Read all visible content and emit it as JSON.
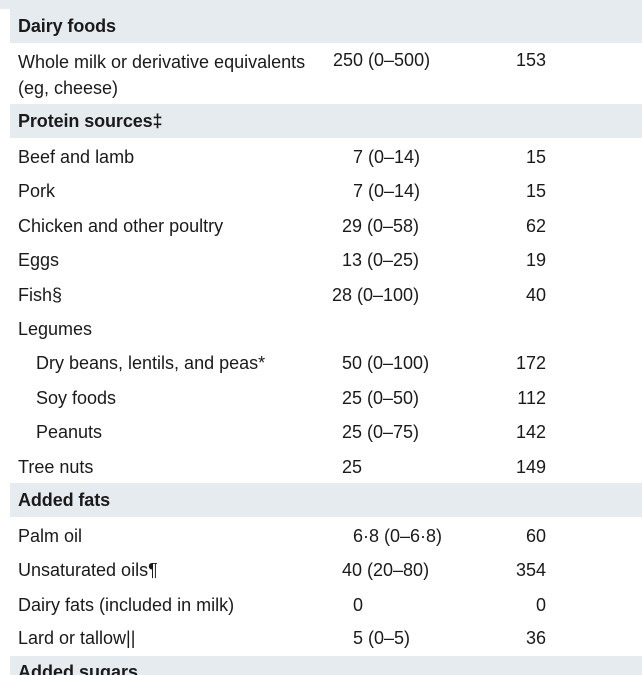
{
  "sections": {
    "dairy": "Dairy foods",
    "protein": "Protein sources‡",
    "fats": "Added fats",
    "sugars": "Added sugars"
  },
  "rows": [
    {
      "name": "Whole milk or derivative equivalents",
      "name2": "(eg, cheese)",
      "amount": "250 (0–500)",
      "kcal": "153"
    },
    {
      "name": "Beef and lamb",
      "amount": "7 (0–14)",
      "kcal": "15"
    },
    {
      "name": "Pork",
      "amount": "7 (0–14)",
      "kcal": "15"
    },
    {
      "name": "Chicken and other poultry",
      "amount": "29 (0–58)",
      "kcal": "62"
    },
    {
      "name": "Eggs",
      "amount": "13 (0–25)",
      "kcal": "19"
    },
    {
      "name": "Fish§",
      "amount": "28 (0–100)",
      "kcal": "40"
    },
    {
      "name": "Legumes",
      "amount": "",
      "kcal": ""
    },
    {
      "name": "Dry beans, lentils, and peas*",
      "amount": "50 (0–100)",
      "kcal": "172"
    },
    {
      "name": "Soy foods",
      "amount": "25 (0–50)",
      "kcal": "112"
    },
    {
      "name": "Peanuts",
      "amount": "25 (0–75)",
      "kcal": "142"
    },
    {
      "name": "Tree nuts",
      "amount": "25",
      "kcal": "149"
    },
    {
      "name": "Palm oil",
      "amount": "6·8 (0–6·8)",
      "kcal": "60"
    },
    {
      "name": "Unsaturated oils¶",
      "amount": "40 (20–80)",
      "kcal": "354"
    },
    {
      "name": "Dairy fats (included in milk)",
      "amount": "0",
      "kcal": "0"
    },
    {
      "name": "Lard or tallow||",
      "amount": "5 (0–5)",
      "kcal": "36"
    }
  ]
}
